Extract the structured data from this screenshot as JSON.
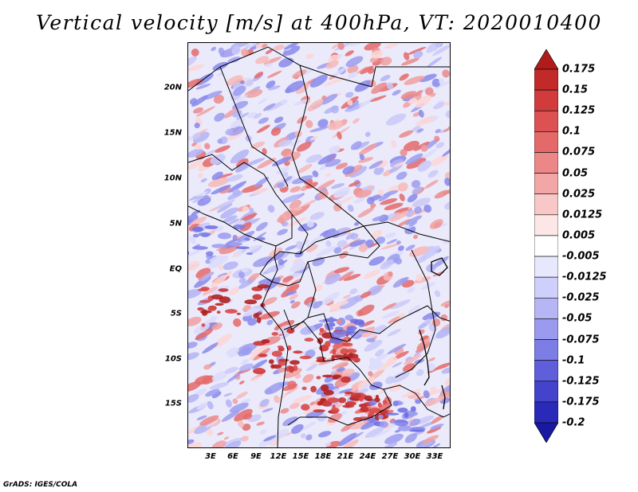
{
  "title": "Vertical velocity [m/s] at 400hPa, VT: 2020010400",
  "footer": "GrADS: IGES/COLA",
  "lat_labels": [
    "20N",
    "15N",
    "10N",
    "5N",
    "EQ",
    "5S",
    "10S",
    "15S"
  ],
  "lon_labels": [
    "3E",
    "6E",
    "9E",
    "12E",
    "15E",
    "18E",
    "21E",
    "24E",
    "27E",
    "30E",
    "33E"
  ],
  "colorbar": {
    "labels": [
      "0.175",
      "0.15",
      "0.125",
      "0.1",
      "0.075",
      "0.05",
      "0.025",
      "0.0125",
      "0.005",
      "-0.005",
      "-0.0125",
      "-0.025",
      "-0.05",
      "-0.075",
      "-0.1",
      "-0.125",
      "-0.175",
      "-0.2"
    ],
    "colors": [
      "#b01b1b",
      "#c22a2a",
      "#d13b3b",
      "#dc5151",
      "#e46a6a",
      "#ec8787",
      "#f3a6a6",
      "#f8c7c7",
      "#fce6e6",
      "#ffffff",
      "#e7e7fd",
      "#cfcffb",
      "#b6b6f5",
      "#9a9aef",
      "#7d7de6",
      "#5f5fdb",
      "#4343cc",
      "#2a2ab8",
      "#1818a0"
    ]
  }
}
